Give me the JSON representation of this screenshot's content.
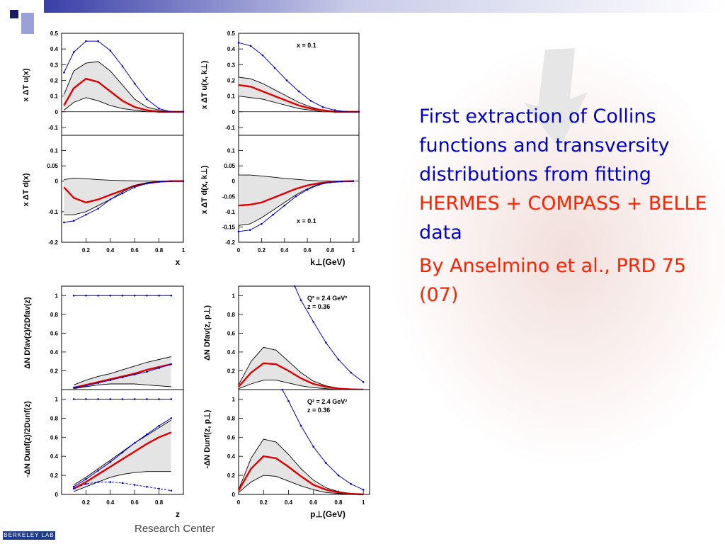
{
  "slide": {
    "text_parts": [
      "First extraction of Collins functions and transversity distributions from fitting ",
      "HERMES + COMPASS + BELLE",
      " data"
    ],
    "citation": "By Anselmino et al., PRD 75 (07)",
    "footer_text": "Research Center",
    "badge_text": "BERKELEY LAB"
  },
  "colors": {
    "text": "#0000cc",
    "highlight": "#ff2200",
    "central": "#dd0000",
    "data": "#0000cc",
    "band": "#e4e4e4",
    "title_bar": "#3a3fa8"
  },
  "chart_data": [
    {
      "type": "line",
      "ylabel": "x ΔT u(x)",
      "xlim": [
        0,
        1
      ],
      "ylim": [
        -0.15,
        0.5
      ],
      "yticks": [
        "0.5",
        "0.4",
        "0.3",
        "0.2",
        "0.1",
        "0",
        "-0.1"
      ],
      "xticks": [],
      "series": [
        {
          "role": "upper",
          "x": [
            0.02,
            0.1,
            0.2,
            0.3,
            0.4,
            0.5,
            0.6,
            0.7,
            0.8,
            0.9,
            1.0
          ],
          "y": [
            0.11,
            0.26,
            0.31,
            0.32,
            0.26,
            0.17,
            0.08,
            0.03,
            0.01,
            0,
            0
          ]
        },
        {
          "role": "central",
          "x": [
            0.02,
            0.1,
            0.2,
            0.3,
            0.4,
            0.5,
            0.6,
            0.7,
            0.8,
            0.9,
            1.0
          ],
          "y": [
            0.04,
            0.15,
            0.21,
            0.19,
            0.13,
            0.07,
            0.03,
            0.01,
            0,
            0,
            0
          ]
        },
        {
          "role": "lower",
          "x": [
            0.02,
            0.1,
            0.2,
            0.3,
            0.4,
            0.5,
            0.6,
            0.7,
            0.8,
            0.9,
            1.0
          ],
          "y": [
            0.01,
            0.06,
            0.09,
            0.07,
            0.04,
            0.02,
            0.01,
            0,
            0,
            0,
            0
          ]
        },
        {
          "role": "data",
          "x": [
            0.02,
            0.1,
            0.2,
            0.3,
            0.4,
            0.5,
            0.6,
            0.7,
            0.8,
            0.9,
            1.0
          ],
          "y": [
            0.25,
            0.38,
            0.45,
            0.45,
            0.39,
            0.29,
            0.18,
            0.08,
            0.02,
            0,
            0
          ]
        }
      ]
    },
    {
      "type": "line",
      "ylabel": "x ΔT u(x, k⊥)",
      "annotation": [
        "x = 0.1"
      ],
      "xlim": [
        0,
        1
      ],
      "ylim": [
        -0.15,
        0.5
      ],
      "yticks": [
        "0.5",
        "0.4",
        "0.3",
        "0.2",
        "0.1",
        "0",
        "-0.1"
      ],
      "xticks": [],
      "series": [
        {
          "role": "upper",
          "x": [
            0,
            0.1,
            0.2,
            0.3,
            0.4,
            0.5,
            0.6,
            0.7,
            0.8,
            0.9,
            1.0
          ],
          "y": [
            0.22,
            0.21,
            0.18,
            0.14,
            0.1,
            0.06,
            0.03,
            0.01,
            0,
            0,
            0
          ]
        },
        {
          "role": "central",
          "x": [
            0,
            0.1,
            0.2,
            0.3,
            0.4,
            0.5,
            0.6,
            0.7,
            0.8,
            0.9,
            1.0
          ],
          "y": [
            0.17,
            0.16,
            0.13,
            0.1,
            0.07,
            0.04,
            0.02,
            0.01,
            0,
            0,
            0
          ]
        },
        {
          "role": "lower",
          "x": [
            0,
            0.1,
            0.2,
            0.3,
            0.4,
            0.5,
            0.6,
            0.7,
            0.8,
            0.9,
            1.0
          ],
          "y": [
            0.1,
            0.09,
            0.08,
            0.06,
            0.04,
            0.02,
            0.01,
            0,
            0,
            0,
            0
          ]
        },
        {
          "role": "data",
          "x": [
            0,
            0.1,
            0.2,
            0.3,
            0.4,
            0.5,
            0.6,
            0.7,
            0.8,
            0.9,
            1.0
          ],
          "y": [
            0.44,
            0.42,
            0.36,
            0.28,
            0.2,
            0.13,
            0.07,
            0.03,
            0.01,
            0,
            0
          ]
        }
      ]
    },
    {
      "type": "line",
      "ylabel": "x ΔT d(x)",
      "xlabel": "x",
      "xlim": [
        0,
        1
      ],
      "ylim": [
        -0.2,
        0.15
      ],
      "yticks": [
        "0.1",
        "0.05",
        "0",
        "-0.1",
        "-0.2"
      ],
      "xticks": [
        "0.2",
        "0.4",
        "0.6",
        "0.8",
        "1"
      ],
      "series": [
        {
          "role": "upper",
          "x": [
            0.02,
            0.1,
            0.2,
            0.3,
            0.4,
            0.5,
            0.6,
            0.7,
            0.8,
            0.9,
            1.0
          ],
          "y": [
            0.005,
            0.01,
            0.008,
            0.005,
            0.003,
            0.002,
            0.001,
            0,
            0,
            0,
            0
          ]
        },
        {
          "role": "central",
          "x": [
            0.02,
            0.1,
            0.2,
            0.3,
            0.4,
            0.5,
            0.6,
            0.7,
            0.8,
            0.9,
            1.0
          ],
          "y": [
            -0.02,
            -0.055,
            -0.07,
            -0.06,
            -0.045,
            -0.03,
            -0.015,
            -0.007,
            -0.002,
            0,
            0
          ]
        },
        {
          "role": "lower",
          "x": [
            0.02,
            0.1,
            0.2,
            0.3,
            0.4,
            0.5,
            0.6,
            0.7,
            0.8,
            0.9,
            1.0
          ],
          "y": [
            -0.11,
            -0.11,
            -0.1,
            -0.08,
            -0.06,
            -0.035,
            -0.015,
            -0.005,
            -0.002,
            0,
            0
          ]
        },
        {
          "role": "data",
          "x": [
            0.02,
            0.1,
            0.2,
            0.3,
            0.4,
            0.5,
            0.6,
            0.7,
            0.8,
            0.9,
            1.0
          ],
          "y": [
            -0.135,
            -0.13,
            -0.11,
            -0.09,
            -0.06,
            -0.04,
            -0.02,
            -0.008,
            -0.002,
            0,
            0
          ]
        }
      ]
    },
    {
      "type": "line",
      "ylabel": "x ΔT d(x, k⊥)",
      "xlabel": "k⊥(GeV)",
      "annotation": [
        "x = 0.1"
      ],
      "xlim": [
        0,
        1.05
      ],
      "ylim": [
        -0.2,
        0.15
      ],
      "yticks": [
        "0.1",
        "0.05",
        "0",
        "-0.05",
        "-0.1",
        "-0.15",
        "-0.2"
      ],
      "xticks": [
        "0",
        "0.2",
        "0.4",
        "0.6",
        "0.8",
        "1"
      ],
      "series": [
        {
          "role": "upper",
          "x": [
            0,
            0.1,
            0.2,
            0.3,
            0.4,
            0.5,
            0.6,
            0.7,
            0.8,
            0.9,
            1.0
          ],
          "y": [
            0.02,
            0.02,
            0.017,
            0.013,
            0.009,
            0.006,
            0.003,
            0.001,
            0,
            0,
            0
          ]
        },
        {
          "role": "central",
          "x": [
            0,
            0.1,
            0.2,
            0.3,
            0.4,
            0.5,
            0.6,
            0.7,
            0.8,
            0.9,
            1.0
          ],
          "y": [
            -0.08,
            -0.077,
            -0.07,
            -0.055,
            -0.04,
            -0.025,
            -0.014,
            -0.007,
            -0.003,
            -0.001,
            0
          ]
        },
        {
          "role": "lower",
          "x": [
            0,
            0.1,
            0.2,
            0.3,
            0.4,
            0.5,
            0.6,
            0.7,
            0.8,
            0.9,
            1.0
          ],
          "y": [
            -0.145,
            -0.14,
            -0.12,
            -0.095,
            -0.07,
            -0.045,
            -0.025,
            -0.01,
            -0.004,
            -0.001,
            0
          ]
        },
        {
          "role": "data",
          "x": [
            0,
            0.1,
            0.2,
            0.3,
            0.4,
            0.5,
            0.6,
            0.7,
            0.8,
            0.9,
            1.0
          ],
          "y": [
            -0.165,
            -0.16,
            -0.14,
            -0.11,
            -0.08,
            -0.05,
            -0.028,
            -0.012,
            -0.004,
            -0.001,
            0
          ]
        }
      ]
    },
    {
      "type": "line",
      "ylabel": "ΔN Dfav(z)/2Dfav(z)",
      "xlim": [
        0,
        1
      ],
      "ylim": [
        0,
        1.1
      ],
      "yticks": [
        "1",
        "0.8",
        "0.6",
        "0.4",
        "0.2"
      ],
      "xticks": [],
      "series": [
        {
          "role": "upper",
          "x": [
            0.1,
            0.2,
            0.3,
            0.4,
            0.5,
            0.6,
            0.7,
            0.8,
            0.9
          ],
          "y": [
            0.05,
            0.1,
            0.14,
            0.17,
            0.21,
            0.25,
            0.29,
            0.32,
            0.35
          ]
        },
        {
          "role": "central",
          "x": [
            0.1,
            0.2,
            0.3,
            0.4,
            0.5,
            0.6,
            0.7,
            0.8,
            0.9
          ],
          "y": [
            0.02,
            0.05,
            0.08,
            0.11,
            0.14,
            0.17,
            0.21,
            0.24,
            0.27
          ]
        },
        {
          "role": "lower",
          "x": [
            0.1,
            0.2,
            0.3,
            0.4,
            0.5,
            0.6,
            0.7,
            0.8,
            0.9
          ],
          "y": [
            0.01,
            0.03,
            0.05,
            0.06,
            0.06,
            0.06,
            0.05,
            0.04,
            0.03
          ]
        },
        {
          "role": "data",
          "x": [
            0.1,
            0.2,
            0.3,
            0.4,
            0.5,
            0.6,
            0.7,
            0.8,
            0.9
          ],
          "y": [
            1,
            1,
            1,
            1,
            1,
            1,
            1,
            1,
            1
          ]
        },
        {
          "role": "data2",
          "x": [
            0.1,
            0.2,
            0.3,
            0.4,
            0.5,
            0.6,
            0.7,
            0.8,
            0.9
          ],
          "y": [
            0.02,
            0.04,
            0.07,
            0.1,
            0.13,
            0.16,
            0.19,
            0.23,
            0.27
          ]
        }
      ]
    },
    {
      "type": "line",
      "ylabel": "ΔN Dfav(z, p⊥)",
      "annotation": [
        "Q² = 2.4 GeV²",
        "z = 0.36"
      ],
      "xlim": [
        0,
        1.05
      ],
      "ylim": [
        0,
        1.1
      ],
      "yticks": [
        "1",
        "0.8",
        "0.6",
        "0.4",
        "0.2"
      ],
      "xticks": [],
      "series": [
        {
          "role": "upper",
          "x": [
            0,
            0.1,
            0.2,
            0.3,
            0.4,
            0.5,
            0.6,
            0.7,
            0.8,
            0.9,
            1.0
          ],
          "y": [
            0.05,
            0.3,
            0.45,
            0.42,
            0.3,
            0.18,
            0.09,
            0.04,
            0.015,
            0.005,
            0
          ]
        },
        {
          "role": "central",
          "x": [
            0,
            0.1,
            0.2,
            0.3,
            0.4,
            0.5,
            0.6,
            0.7,
            0.8,
            0.9,
            1.0
          ],
          "y": [
            0.03,
            0.18,
            0.28,
            0.27,
            0.2,
            0.12,
            0.06,
            0.03,
            0.01,
            0.003,
            0
          ]
        },
        {
          "role": "lower",
          "x": [
            0,
            0.1,
            0.2,
            0.3,
            0.4,
            0.5,
            0.6,
            0.7,
            0.8,
            0.9,
            1.0
          ],
          "y": [
            0.01,
            0.06,
            0.1,
            0.1,
            0.07,
            0.04,
            0.02,
            0.01,
            0,
            0,
            0
          ]
        },
        {
          "role": "data",
          "x": [
            0.45,
            0.5,
            0.6,
            0.7,
            0.8,
            0.9,
            1.0
          ],
          "y": [
            1.1,
            0.95,
            0.72,
            0.5,
            0.32,
            0.18,
            0.08
          ]
        }
      ]
    },
    {
      "type": "line",
      "ylabel": "-ΔN Dunf(z)/2Dunf(z)",
      "xlabel": "z",
      "xlim": [
        0,
        1
      ],
      "ylim": [
        0,
        1.1
      ],
      "yticks": [
        "1",
        "0.8",
        "0.6",
        "0.4",
        "0.2",
        "0"
      ],
      "xticks": [
        "0.2",
        "0.4",
        "0.6",
        "0.8"
      ],
      "series": [
        {
          "role": "upper",
          "x": [
            0.1,
            0.2,
            0.3,
            0.4,
            0.5,
            0.6,
            0.7,
            0.8,
            0.9
          ],
          "y": [
            0.1,
            0.18,
            0.27,
            0.36,
            0.45,
            0.54,
            0.62,
            0.7,
            0.78
          ]
        },
        {
          "role": "central",
          "x": [
            0.1,
            0.2,
            0.3,
            0.4,
            0.5,
            0.6,
            0.7,
            0.8,
            0.9
          ],
          "y": [
            0.06,
            0.13,
            0.21,
            0.29,
            0.37,
            0.45,
            0.53,
            0.6,
            0.65
          ]
        },
        {
          "role": "lower",
          "x": [
            0.1,
            0.2,
            0.3,
            0.4,
            0.5,
            0.6,
            0.7,
            0.8,
            0.9
          ],
          "y": [
            0.03,
            0.08,
            0.13,
            0.18,
            0.21,
            0.23,
            0.24,
            0.24,
            0.24
          ]
        },
        {
          "role": "data",
          "x": [
            0.1,
            0.2,
            0.3,
            0.4,
            0.5,
            0.6,
            0.7,
            0.8,
            0.9
          ],
          "y": [
            1,
            1,
            1,
            1,
            1,
            1,
            1,
            1,
            1
          ]
        },
        {
          "role": "data2",
          "x": [
            0.1,
            0.2,
            0.3,
            0.4,
            0.5,
            0.6,
            0.7,
            0.8,
            0.9
          ],
          "y": [
            0.08,
            0.16,
            0.25,
            0.34,
            0.44,
            0.54,
            0.63,
            0.72,
            0.8
          ]
        },
        {
          "role": "data3",
          "x": [
            0.1,
            0.2,
            0.3,
            0.4,
            0.5,
            0.6,
            0.7,
            0.8,
            0.9
          ],
          "y": [
            0.06,
            0.11,
            0.13,
            0.13,
            0.12,
            0.1,
            0.08,
            0.06,
            0.04
          ]
        }
      ]
    },
    {
      "type": "line",
      "ylabel": "-ΔN Dunf(z, p⊥)",
      "xlabel": "p⊥(GeV)",
      "annotation": [
        "Q² = 2.4 GeV²",
        "z = 0.36"
      ],
      "xlim": [
        0,
        1.05
      ],
      "ylim": [
        0,
        1.1
      ],
      "yticks": [
        "1",
        "0.8",
        "0.6",
        "0.4",
        "0.2",
        "0"
      ],
      "xticks": [
        "0",
        "0.2",
        "0.4",
        "0.6",
        "0.8",
        "1"
      ],
      "series": [
        {
          "role": "upper",
          "x": [
            0,
            0.1,
            0.2,
            0.3,
            0.4,
            0.5,
            0.6,
            0.7,
            0.8,
            0.9,
            1.0
          ],
          "y": [
            0.05,
            0.38,
            0.58,
            0.55,
            0.42,
            0.27,
            0.15,
            0.07,
            0.03,
            0.01,
            0
          ]
        },
        {
          "role": "central",
          "x": [
            0,
            0.1,
            0.2,
            0.3,
            0.4,
            0.5,
            0.6,
            0.7,
            0.8,
            0.9,
            1.0
          ],
          "y": [
            0.04,
            0.27,
            0.4,
            0.38,
            0.29,
            0.19,
            0.1,
            0.05,
            0.02,
            0.007,
            0
          ]
        },
        {
          "role": "lower",
          "x": [
            0,
            0.1,
            0.2,
            0.3,
            0.4,
            0.5,
            0.6,
            0.7,
            0.8,
            0.9,
            1.0
          ],
          "y": [
            0.02,
            0.13,
            0.2,
            0.19,
            0.14,
            0.09,
            0.05,
            0.02,
            0.01,
            0,
            0
          ]
        },
        {
          "role": "data",
          "x": [
            0.35,
            0.4,
            0.5,
            0.6,
            0.7,
            0.8,
            0.9,
            1.0
          ],
          "y": [
            1.1,
            0.98,
            0.72,
            0.5,
            0.33,
            0.2,
            0.11,
            0.05
          ]
        }
      ]
    }
  ]
}
